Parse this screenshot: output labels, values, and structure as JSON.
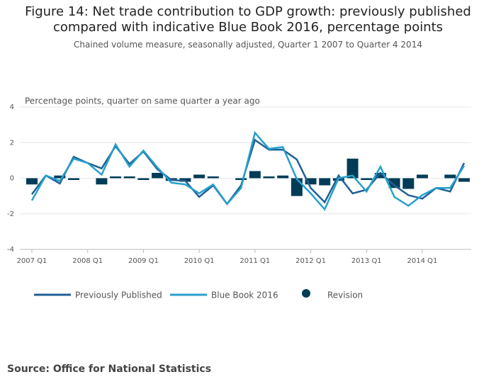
{
  "chart_data": {
    "type": "combo",
    "title": "Figure 14: Net trade contribution to GDP growth: previously published compared with indicative Blue Book 2016, percentage points",
    "subtitle": "Chained volume measure, seasonally adjusted, Quarter 1 2007 to Quarter 4 2014",
    "y_label": "Percentage points, quarter on same quarter a year ago",
    "source": "Source: Office for National Statistics",
    "categories": [
      "2007 Q1",
      null,
      null,
      null,
      "2008 Q1",
      null,
      null,
      null,
      "2009 Q1",
      null,
      null,
      null,
      "2010 Q1",
      null,
      null,
      null,
      "2011 Q1",
      null,
      null,
      null,
      "2012 Q1",
      null,
      null,
      null,
      "2013 Q1",
      null,
      null,
      null,
      "2014 Q1",
      null,
      null,
      null
    ],
    "ylim": [
      -4,
      4
    ],
    "yticks": [
      -4,
      -2,
      0,
      2,
      4
    ],
    "grid": true,
    "legend": "bottom",
    "series": [
      {
        "name": "Previously Published",
        "type": "line",
        "color": "#206095",
        "values": [
          -0.9,
          0.15,
          -0.3,
          1.2,
          0.85,
          0.55,
          1.8,
          0.8,
          1.5,
          0.5,
          -0.1,
          -0.15,
          -1.05,
          -0.4,
          -1.45,
          -0.4,
          2.15,
          1.6,
          1.6,
          1.05,
          -0.55,
          -1.35,
          0.15,
          -0.85,
          -0.65,
          0.3,
          -0.4,
          -0.95,
          -1.15,
          -0.55,
          -0.75,
          0.85
        ]
      },
      {
        "name": "Blue Book 2016",
        "type": "line",
        "color": "#27a0cc",
        "values": [
          -1.25,
          0.15,
          -0.15,
          1.1,
          0.85,
          0.2,
          1.9,
          0.65,
          1.55,
          0.6,
          -0.25,
          -0.35,
          -0.85,
          -0.35,
          -1.45,
          -0.55,
          2.55,
          1.65,
          1.75,
          -0.05,
          -0.85,
          -1.75,
          0.0,
          0.15,
          -0.75,
          0.65,
          -1.05,
          -1.55,
          -0.95,
          -0.55,
          -0.55,
          0.7
        ]
      },
      {
        "name": "Revision",
        "type": "bar",
        "color": "#003c57",
        "values": [
          -0.35,
          0,
          0.15,
          -0.1,
          0,
          -0.35,
          0.1,
          0.1,
          -0.1,
          0.3,
          -0.15,
          -0.2,
          0.2,
          0.1,
          0,
          -0.1,
          0.4,
          0.1,
          0.15,
          -1.0,
          -0.35,
          -0.4,
          -0.15,
          1.1,
          -0.1,
          0.3,
          -0.55,
          -0.6,
          0.2,
          0,
          0.2,
          -0.2
        ]
      }
    ]
  }
}
